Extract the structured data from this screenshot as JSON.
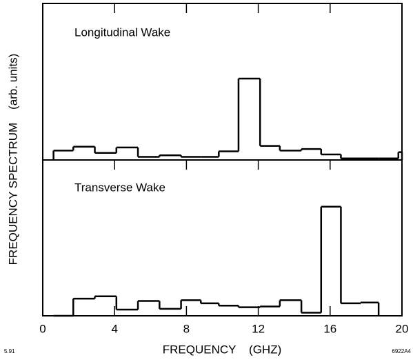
{
  "chart_data": [
    {
      "type": "histogram",
      "title": "Longitudinal Wake",
      "bins": [
        0.6,
        1.7,
        2.9,
        4.1,
        5.3,
        6.5,
        7.7,
        8.8,
        9.8,
        10.9,
        12.1,
        13.2,
        14.4,
        15.5,
        16.6,
        18.7,
        19.8,
        20
      ],
      "values": [
        6,
        8.5,
        4.5,
        8,
        2,
        3,
        2,
        2,
        5.5,
        52,
        9,
        6,
        7,
        3.5,
        1,
        1,
        5
      ],
      "xlim": [
        0,
        20
      ],
      "xticks": [
        0,
        4,
        8,
        12,
        16,
        20
      ],
      "ylim": [
        0,
        100
      ],
      "color": "#000000"
    },
    {
      "type": "histogram",
      "title": "Transverse Wake",
      "bins": [
        0.6,
        1.7,
        2.9,
        4.1,
        5.3,
        6.5,
        7.7,
        8.8,
        9.8,
        10.9,
        12.1,
        13.2,
        14.4,
        15.5,
        16.6,
        17.7,
        18.7
      ],
      "values": [
        0,
        11,
        12.5,
        4,
        9.5,
        4.5,
        10,
        8,
        6.5,
        5.5,
        6,
        10,
        2,
        70,
        8,
        8.5
      ],
      "xlim": [
        0,
        20
      ],
      "xticks": [
        0,
        4,
        8,
        12,
        16,
        20
      ],
      "ylim": [
        0,
        100
      ],
      "color": "#000000",
      "xlabel": "FREQUENCY    (GHZ)"
    }
  ],
  "ylabel": "FREQUENCY SPECTRUM    (arb. units)",
  "footer": {
    "date": "5.91",
    "code": "6922A4"
  }
}
